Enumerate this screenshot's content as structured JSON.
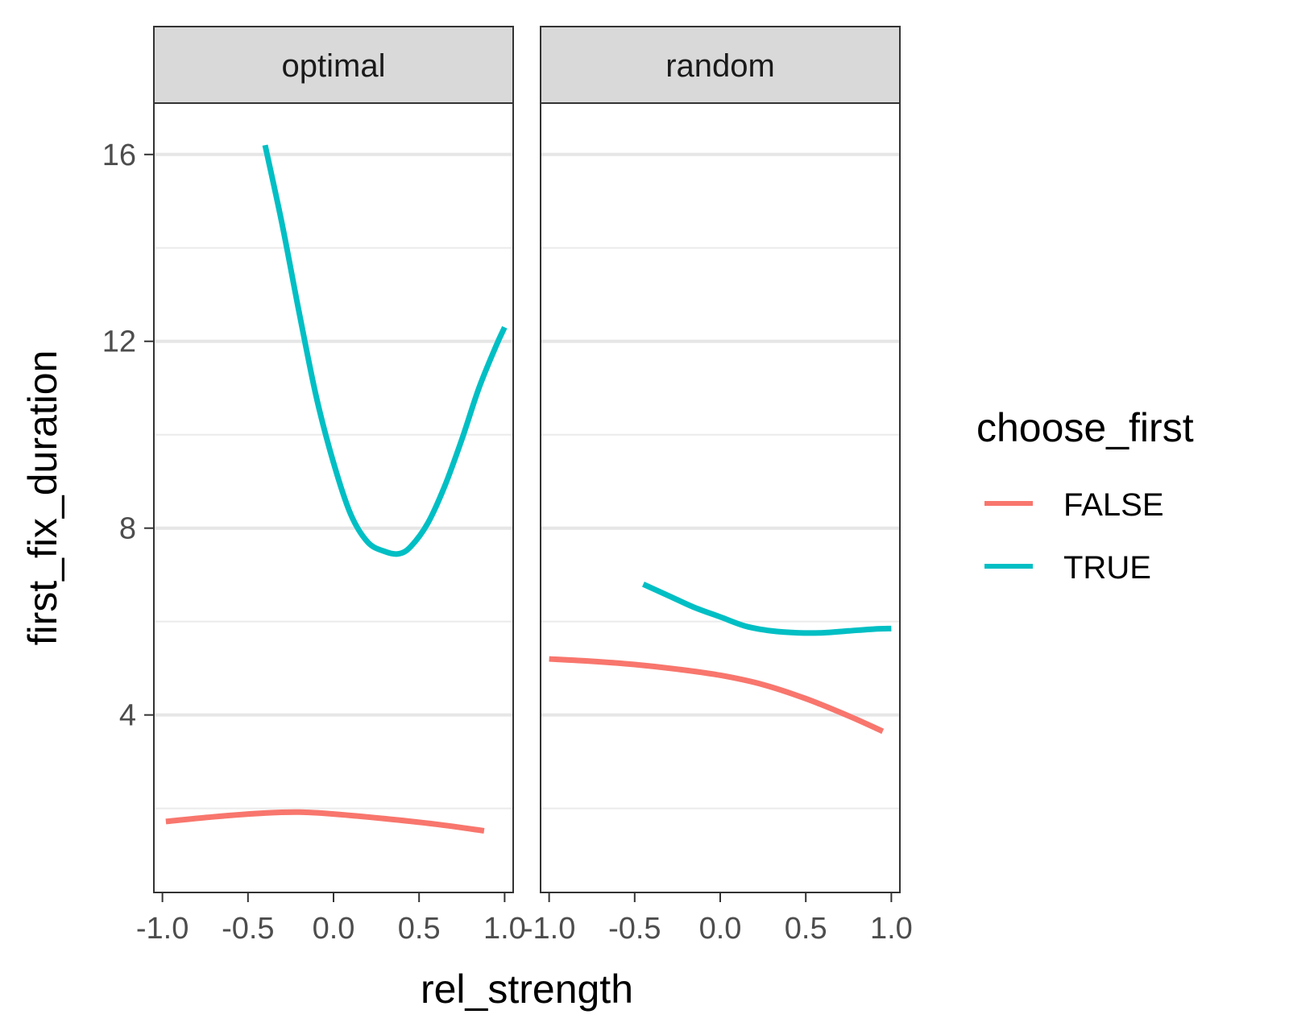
{
  "chart_data": {
    "type": "line",
    "title": "",
    "xlabel": "rel_strength",
    "ylabel": "first_fix_duration",
    "xlim": [
      -1.05,
      1.05
    ],
    "ylim": [
      0.2,
      17.1
    ],
    "x_ticks": [
      -1.0,
      -0.5,
      0.0,
      0.5,
      1.0
    ],
    "x_tick_labels": [
      "-1.0",
      "-0.5",
      "0.0",
      "0.5",
      "1.0"
    ],
    "y_ticks": [
      4,
      8,
      12,
      16
    ],
    "y_tick_labels": [
      "4",
      "8",
      "12",
      "16"
    ],
    "y_minor_ticks": [
      2,
      6,
      10,
      14
    ],
    "grid": "horizontal",
    "legend": {
      "title": "choose_first",
      "position": "right",
      "entries": [
        "FALSE",
        "TRUE"
      ]
    },
    "colors": {
      "FALSE": "#F8766D",
      "TRUE": "#00BFC4"
    },
    "panels": [
      {
        "facet": "optimal",
        "series": [
          {
            "name": "FALSE",
            "x": [
              -0.98,
              -0.7,
              -0.4,
              -0.2,
              0.0,
              0.3,
              0.6,
              0.88
            ],
            "y": [
              1.72,
              1.82,
              1.9,
              1.92,
              1.88,
              1.78,
              1.66,
              1.52
            ]
          },
          {
            "name": "TRUE",
            "x": [
              -0.4,
              -0.3,
              -0.2,
              -0.1,
              0.0,
              0.1,
              0.2,
              0.3,
              0.38,
              0.45,
              0.55,
              0.65,
              0.75,
              0.85,
              0.95,
              1.0
            ],
            "y": [
              16.2,
              14.5,
              12.6,
              10.8,
              9.4,
              8.3,
              7.7,
              7.5,
              7.45,
              7.6,
              8.1,
              8.9,
              9.9,
              11.0,
              11.9,
              12.3
            ]
          }
        ]
      },
      {
        "facet": "random",
        "series": [
          {
            "name": "FALSE",
            "x": [
              -1.0,
              -0.75,
              -0.5,
              -0.25,
              0.0,
              0.25,
              0.5,
              0.75,
              0.95
            ],
            "y": [
              5.2,
              5.15,
              5.08,
              4.98,
              4.85,
              4.65,
              4.35,
              3.98,
              3.65
            ]
          },
          {
            "name": "TRUE",
            "x": [
              -0.45,
              -0.3,
              -0.15,
              0.0,
              0.15,
              0.3,
              0.45,
              0.6,
              0.75,
              0.9,
              1.0
            ],
            "y": [
              6.8,
              6.55,
              6.3,
              6.1,
              5.9,
              5.8,
              5.76,
              5.76,
              5.8,
              5.84,
              5.85
            ]
          }
        ]
      }
    ]
  }
}
